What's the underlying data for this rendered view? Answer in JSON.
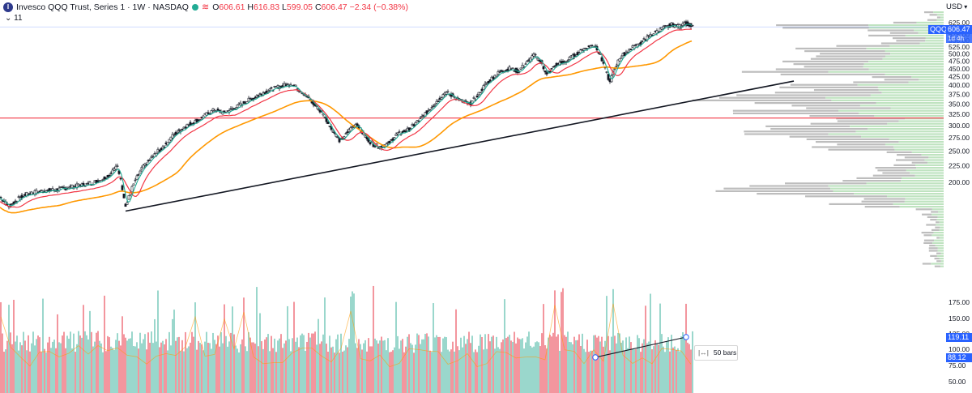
{
  "header": {
    "logo_letter": "I",
    "title": "Invesco QQQ Trust, Series 1 · 1W · NASDAQ",
    "open_label": "O",
    "open": "606.61",
    "high_label": "H",
    "high": "616.83",
    "low_label": "L",
    "low": "599.05",
    "close_label": "C",
    "close": "606.47",
    "change": "−2.34 (−0.38%)",
    "collapse_label": "11"
  },
  "price_scale": {
    "currency": "USD",
    "ticks": [
      625,
      600,
      575,
      550,
      525,
      500,
      475,
      450,
      425,
      400,
      375,
      350,
      325,
      300,
      275,
      250,
      225,
      200,
      175,
      150,
      125,
      100,
      75,
      50
    ],
    "symbol_tag": "QQQ",
    "last_price": "606.47",
    "countdown": "1d 4h",
    "tag_upper": "119.11",
    "tag_lower": "88.12"
  },
  "measure_label": "50 bars",
  "colors": {
    "up": "#22ab94",
    "down": "#f23645",
    "candle_body": "#131722",
    "ma_short": "#22ab94",
    "ma_mid": "#f23645",
    "ma_long": "#ff9800",
    "trendline": "#131722",
    "hline": "#f23645",
    "vol_up": "#8fd3c6",
    "vol_down": "#f28b94",
    "vp_up": "#bfe3c0",
    "vp_down": "#bdbdbd",
    "accent": "#2962ff"
  },
  "chart_data": {
    "type": "candlestick",
    "symbol": "QQQ",
    "interval": "1W",
    "ylim": [
      40,
      660
    ],
    "y_scale": "log",
    "grid": false,
    "last_close": 606.47,
    "horizontal_line": 316.5,
    "trendline": {
      "from_week": 155,
      "to_week": 980,
      "from_price": 163,
      "to_price": 412
    },
    "price_anchors": [
      [
        0,
        180
      ],
      [
        10,
        169
      ],
      [
        30,
        183
      ],
      [
        50,
        188
      ],
      [
        70,
        190
      ],
      [
        90,
        194
      ],
      [
        110,
        198
      ],
      [
        125,
        204
      ],
      [
        135,
        212
      ],
      [
        145,
        224
      ],
      [
        150,
        198
      ],
      [
        155,
        168
      ],
      [
        165,
        198
      ],
      [
        175,
        220
      ],
      [
        190,
        243
      ],
      [
        205,
        263
      ],
      [
        215,
        282
      ],
      [
        230,
        300
      ],
      [
        245,
        313
      ],
      [
        255,
        325
      ],
      [
        265,
        336
      ],
      [
        275,
        328
      ],
      [
        290,
        340
      ],
      [
        300,
        352
      ],
      [
        315,
        368
      ],
      [
        330,
        385
      ],
      [
        345,
        396
      ],
      [
        360,
        404
      ],
      [
        370,
        386
      ],
      [
        385,
        355
      ],
      [
        400,
        322
      ],
      [
        410,
        290
      ],
      [
        420,
        268
      ],
      [
        430,
        288
      ],
      [
        440,
        305
      ],
      [
        450,
        278
      ],
      [
        460,
        262
      ],
      [
        470,
        258
      ],
      [
        480,
        265
      ],
      [
        490,
        282
      ],
      [
        505,
        292
      ],
      [
        520,
        316
      ],
      [
        535,
        348
      ],
      [
        550,
        380
      ],
      [
        560,
        370
      ],
      [
        570,
        356
      ],
      [
        580,
        350
      ],
      [
        590,
        372
      ],
      [
        600,
        405
      ],
      [
        610,
        426
      ],
      [
        620,
        445
      ],
      [
        630,
        450
      ],
      [
        640,
        442
      ],
      [
        650,
        470
      ],
      [
        660,
        495
      ],
      [
        668,
        472
      ],
      [
        675,
        430
      ],
      [
        685,
        462
      ],
      [
        700,
        476
      ],
      [
        715,
        508
      ],
      [
        725,
        525
      ],
      [
        735,
        532
      ],
      [
        742,
        488
      ],
      [
        748,
        440
      ],
      [
        753,
        408
      ],
      [
        758,
        445
      ],
      [
        765,
        485
      ],
      [
        775,
        512
      ],
      [
        790,
        540
      ],
      [
        805,
        575
      ],
      [
        820,
        603
      ],
      [
        830,
        618
      ],
      [
        838,
        605
      ],
      [
        845,
        628
      ],
      [
        855,
        606
      ]
    ],
    "moving_averages": [
      {
        "label": "short",
        "lag": 6
      },
      {
        "label": "mid",
        "lag": 18
      },
      {
        "label": "long",
        "lag": 70
      }
    ]
  }
}
